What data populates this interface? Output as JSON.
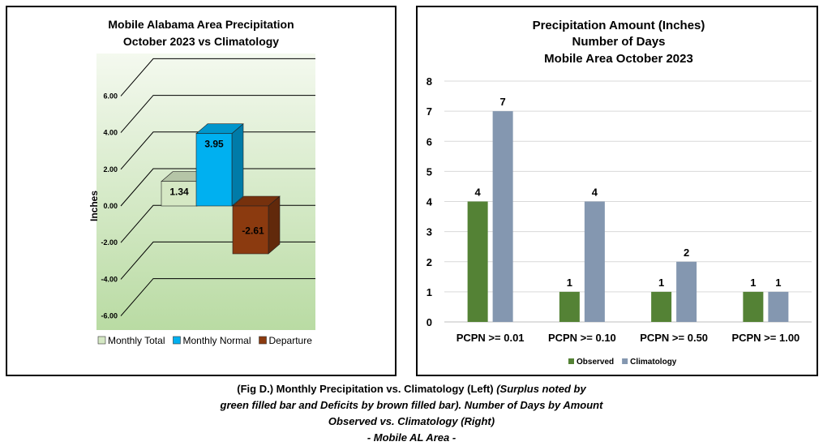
{
  "chart_data": [
    {
      "type": "bar",
      "style": "3d",
      "title_lines": [
        "Mobile Alabama Area Precipitation",
        "October 2023 vs Climatology"
      ],
      "ylabel": "Inches",
      "ylim": [
        -6,
        6
      ],
      "y_ticks": [
        "6.00",
        "4.00",
        "2.00",
        "0.00",
        "-2.00",
        "-4.00",
        "-6.00"
      ],
      "y_tick_values": [
        6,
        4,
        2,
        0,
        -2,
        -4,
        -6
      ],
      "grid": true,
      "legend_position": "bottom",
      "series": [
        {
          "name": "Monthly Total",
          "value": 1.34,
          "label": "1.34",
          "color": "#d5e8c4"
        },
        {
          "name": "Monthly Normal",
          "value": 3.95,
          "label": "3.95",
          "color": "#00b0f0"
        },
        {
          "name": "Departure",
          "value": -2.61,
          "label": "-2.61",
          "color": "#8b3a0f"
        }
      ]
    },
    {
      "type": "bar",
      "title_lines": [
        "Precipitation Amount (Inches)",
        "Number of Days",
        "Mobile Area October 2023"
      ],
      "categories": [
        "PCPN >= 0.01",
        "PCPN >= 0.10",
        "PCPN >= 0.50",
        "PCPN >= 1.00"
      ],
      "ylim": [
        0,
        8
      ],
      "y_ticks": [
        "0",
        "1",
        "2",
        "3",
        "4",
        "5",
        "6",
        "7",
        "8"
      ],
      "grid": true,
      "legend_position": "bottom",
      "series": [
        {
          "name": "Observed",
          "values": [
            4,
            1,
            1,
            1
          ],
          "color": "#548235"
        },
        {
          "name": "Climatology",
          "values": [
            7,
            4,
            2,
            1
          ],
          "color": "#8497b0"
        }
      ]
    }
  ],
  "caption": {
    "line1_plain": "(Fig D.) Monthly Precipitation vs. Climatology (Left) ",
    "line1_italic": "(Surplus noted by",
    "line2_italic": "green filled bar and Deficits by brown filled bar). Number of Days by Amount",
    "line3_italic": "Observed vs. Climatology (Right)",
    "line4_italic": "- Mobile AL Area -"
  }
}
